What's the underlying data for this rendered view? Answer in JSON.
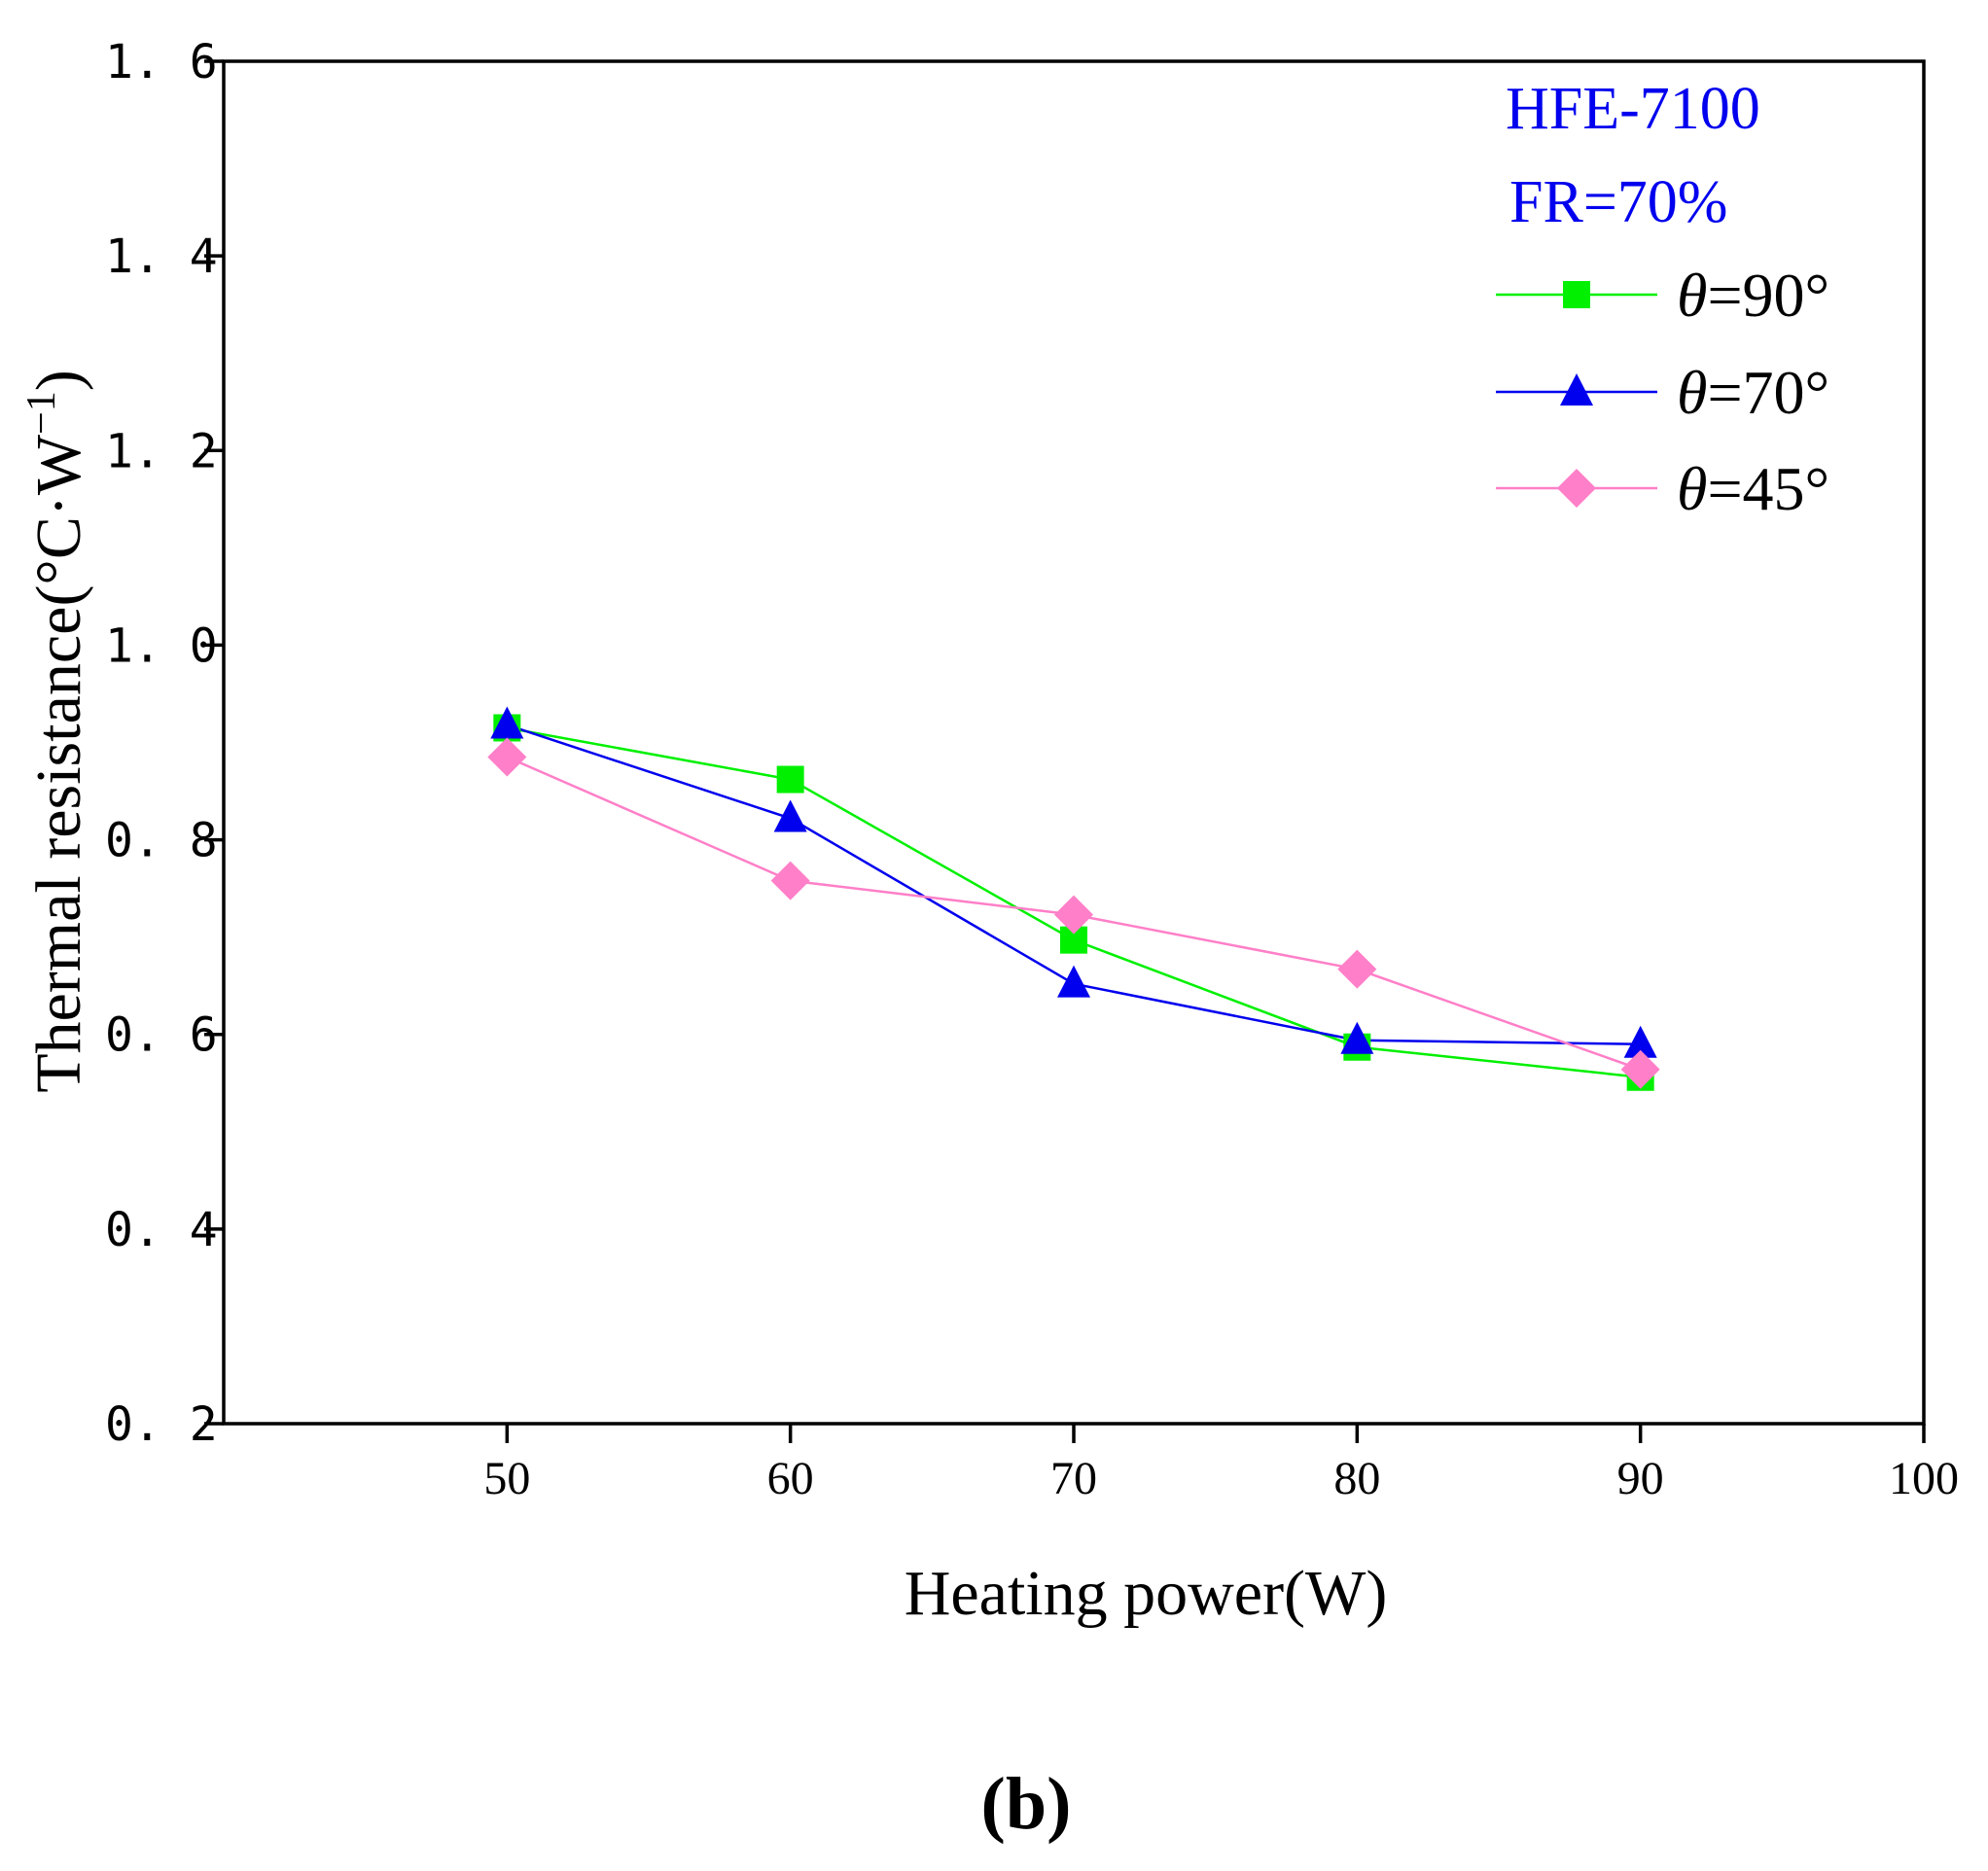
{
  "chart_data": {
    "type": "line",
    "title": "",
    "xlabel": "Heating power(W)",
    "ylabel_main": "Thermal resistance(°C·W",
    "ylabel_sup": "−1",
    "ylabel_close": ")",
    "xlim": [
      40,
      100
    ],
    "ylim": [
      0.2,
      1.6
    ],
    "x_ticks": [
      50,
      60,
      70,
      80,
      90,
      100
    ],
    "x_tick_labels": [
      "50",
      "60",
      "70",
      "80",
      "90",
      "100"
    ],
    "y_ticks": [
      0.2,
      0.4,
      0.6,
      0.8,
      1.0,
      1.2,
      1.4,
      1.6
    ],
    "y_tick_labels": [
      "0. 2",
      "0. 4",
      "0. 6",
      "0. 8",
      "1. 0",
      "1. 2",
      "1. 4",
      "1. 6"
    ],
    "x": [
      50,
      60,
      70,
      80,
      90
    ],
    "series": [
      {
        "name": "θ=90°",
        "symbol": "θ",
        "suffix": "=90°",
        "marker": "square",
        "color": "#00f000",
        "values": [
          0.915,
          0.862,
          0.697,
          0.587,
          0.556
        ]
      },
      {
        "name": "θ=70°",
        "symbol": "θ",
        "suffix": "=70°",
        "marker": "triangle",
        "color": "#0000ee",
        "values": [
          0.918,
          0.822,
          0.652,
          0.594,
          0.59
        ]
      },
      {
        "name": "θ=45°",
        "symbol": "θ",
        "suffix": "=45°",
        "marker": "diamond",
        "color": "#ff7fc8",
        "values": [
          0.885,
          0.758,
          0.723,
          0.667,
          0.564
        ]
      }
    ],
    "annotations": {
      "fluid": "HFE-7100",
      "fill_ratio": "FR=70%",
      "color": "#0000ee"
    },
    "legend_position": "top-right",
    "panel_label": "(b)"
  }
}
